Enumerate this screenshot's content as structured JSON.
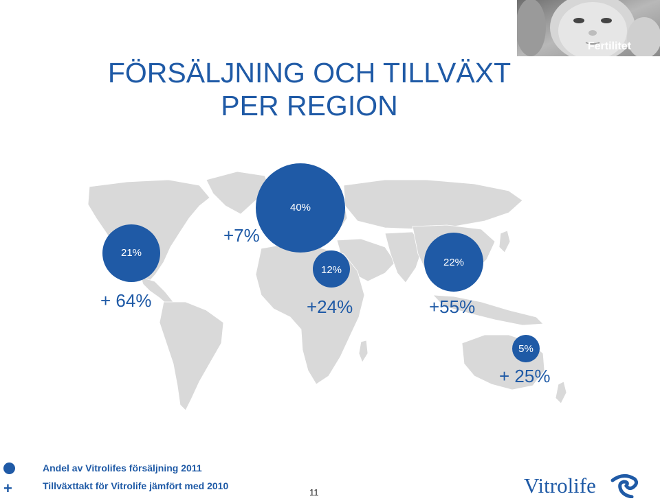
{
  "title": {
    "line1": "FÖRSÄLJNING OCH TILLVÄXT",
    "line2": "PER REGION"
  },
  "header_image": {
    "label": "Fertilitet",
    "icon": "baby-photo"
  },
  "regions": [
    {
      "key": "north-america",
      "share": "21%",
      "growth": "+ 64%"
    },
    {
      "key": "europe",
      "share": "40%",
      "growth": "+7%"
    },
    {
      "key": "middle-east-africa",
      "share": "12%",
      "growth": "+24%"
    },
    {
      "key": "asia",
      "share": "22%",
      "growth": "+55%"
    },
    {
      "key": "oceania",
      "share": "5%",
      "growth": "+ 25%"
    }
  ],
  "legend": {
    "share_label": "Andel av Vitrolifes försäljning 2011",
    "growth_symbol": "+",
    "growth_label": "Tillväxttakt för Vitrolife jämfört med 2010"
  },
  "page_number": "11",
  "logo": {
    "text": "Vitrolife",
    "icon": "vitrolife-swirl-icon"
  },
  "colors": {
    "accent": "#1f5aa6",
    "map_land": "#d9d9d9",
    "background": "#ffffff"
  }
}
